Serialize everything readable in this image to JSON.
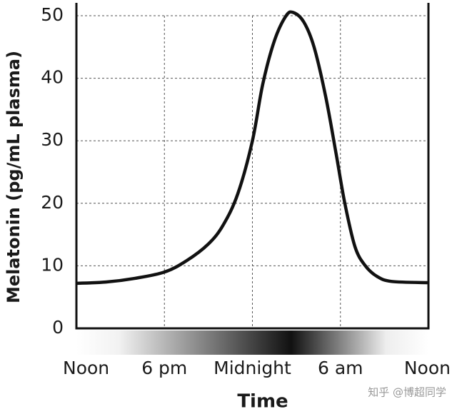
{
  "chart_data": {
    "type": "line",
    "x_label": "Time",
    "y_label": "Melatonin (pg/mL plasma)",
    "x": [
      0,
      2,
      4,
      6,
      7.5,
      9,
      10,
      11,
      12,
      12.7,
      13.5,
      14.3,
      14.8,
      15.5,
      16.2,
      17,
      17.7,
      18.3,
      19,
      19.7,
      20.5,
      21.5,
      24
    ],
    "series": [
      {
        "name": "Melatonin",
        "color": "#111111",
        "values": [
          7.2,
          7.4,
          8.0,
          9.0,
          10.8,
          13.5,
          16.5,
          21.5,
          30,
          39,
          46,
          50,
          50.5,
          49,
          45,
          37,
          28,
          20,
          13,
          10,
          8.3,
          7.5,
          7.3
        ]
      }
    ],
    "xlim": [
      0,
      24
    ],
    "xticks": [
      {
        "value": 0,
        "label": "Noon"
      },
      {
        "value": 6,
        "label": "6 pm"
      },
      {
        "value": 12,
        "label": "Midnight"
      },
      {
        "value": 18,
        "label": "6 am"
      },
      {
        "value": 24,
        "label": "Noon"
      }
    ],
    "ylim": [
      0,
      50
    ],
    "yticks": [
      0,
      10,
      20,
      30,
      40,
      50
    ],
    "grid": true,
    "watermark": "知乎 @博超同学"
  }
}
